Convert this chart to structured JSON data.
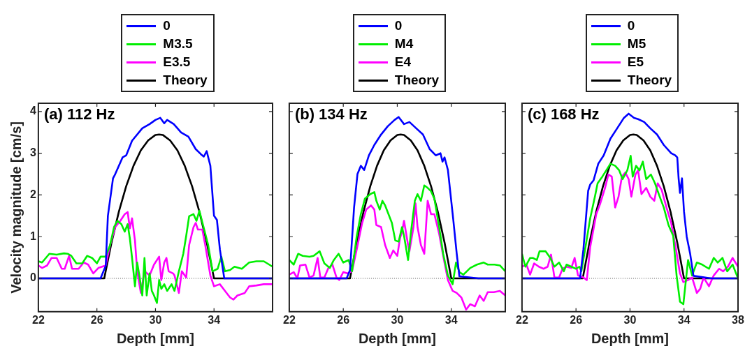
{
  "chart_data": [
    {
      "type": "line",
      "title": "(a) 112 Hz",
      "xlabel": "Depth [mm]",
      "ylabel": "Velocity magnitude [cm/s]",
      "xlim": [
        22,
        38
      ],
      "xticks": [
        22,
        26,
        30,
        34,
        {
          "value": 38,
          "label": null
        }
      ],
      "ylim": [
        -0.8,
        4.2
      ],
      "yticks": [
        0,
        1,
        2,
        3,
        4
      ],
      "grid": false,
      "legend": "top",
      "ref_lines": [
        {
          "axis": "y",
          "value": 0,
          "label": null,
          "color": "#555555",
          "line_style": "dotted"
        }
      ],
      "series": [
        {
          "name": "0",
          "color": "#0000ff",
          "x": [
            22,
            24,
            26.25,
            26.6,
            26.75,
            27.1,
            27.25,
            27.75,
            28,
            28.4,
            29.1,
            29.6,
            30,
            30.33,
            30.6,
            30.8,
            31.25,
            31.75,
            32.25,
            32.75,
            33.1,
            33.3,
            33.5,
            33.75,
            34,
            34.2,
            34.4,
            34.7,
            36,
            38
          ],
          "values": [
            0,
            0,
            0,
            0.3,
            1.5,
            2.4,
            2.5,
            2.9,
            2.95,
            3.3,
            3.6,
            3.7,
            3.8,
            3.85,
            3.72,
            3.8,
            3.7,
            3.5,
            3.4,
            3.1,
            2.98,
            2.92,
            3.05,
            2.7,
            1.5,
            1.4,
            0.7,
            0,
            0,
            0
          ]
        },
        {
          "name": "M3.5",
          "color": "#00ee00",
          "x": [
            22,
            22.25,
            22.75,
            23.25,
            23.75,
            24,
            24.25,
            24.6,
            25,
            25.33,
            25.67,
            26,
            26.25,
            26.6,
            26.9,
            27.17,
            27.4,
            27.67,
            27.9,
            28.1,
            28.25,
            28.4,
            28.6,
            28.75,
            28.9,
            29.1,
            29.25,
            29.4,
            29.6,
            29.75,
            29.9,
            30.1,
            30.25,
            30.4,
            30.6,
            30.8,
            31.1,
            31.3,
            31.6,
            31.9,
            32.1,
            32.3,
            32.6,
            32.8,
            33,
            33.25,
            33.6,
            33.9,
            34.25,
            34.5,
            34.75,
            35.1,
            35.4,
            35.9,
            36.4,
            36.9,
            37.4,
            38
          ],
          "values": [
            0.41,
            0.38,
            0.59,
            0.57,
            0.6,
            0.59,
            0.54,
            0.36,
            0.36,
            0.54,
            0.49,
            0.36,
            0.52,
            0.52,
            0.8,
            1.23,
            1.38,
            1.3,
            1.12,
            1.3,
            0.96,
            0.49,
            -0.19,
            0.38,
            0.07,
            -0.41,
            0.49,
            -0.41,
            0.12,
            -0.3,
            -0.41,
            -0.59,
            -0.04,
            -0.25,
            -0.14,
            -0.3,
            -0.14,
            -0.3,
            0.17,
            0.59,
            1.02,
            1.49,
            1.54,
            1.38,
            1.62,
            1.28,
            0.8,
            0.17,
            0.23,
            0.52,
            0.17,
            0.2,
            0.28,
            0.23,
            0.38,
            0.41,
            0.41,
            0.28
          ]
        },
        {
          "name": "E3.5",
          "color": "#ff00ff",
          "x": [
            22,
            22.25,
            22.6,
            22.9,
            23.25,
            23.6,
            23.8,
            24.1,
            24.3,
            24.75,
            25.1,
            25.4,
            25.75,
            26.1,
            26.6,
            26.9,
            27.25,
            27.6,
            27.9,
            28.1,
            28.25,
            28.4,
            28.6,
            28.75,
            29,
            29.25,
            29.6,
            29.9,
            30.25,
            30.4,
            30.6,
            30.75,
            30.9,
            31.2,
            31.3,
            31.6,
            31.8,
            32.1,
            32.3,
            32.6,
            32.75,
            32.9,
            33.2,
            33.4,
            33.75,
            34,
            34.4,
            34.75,
            35.1,
            35.33,
            35.6,
            36.1,
            36.4,
            36.9,
            37.4,
            38
          ],
          "values": [
            0.31,
            0.25,
            0.31,
            0.49,
            0.49,
            0.23,
            0.23,
            0.54,
            0.23,
            0.23,
            0.38,
            0.33,
            0.12,
            0.25,
            0.31,
            0.8,
            1.23,
            1.38,
            1.54,
            1.59,
            1.2,
            1.44,
            0.91,
            0.17,
            -0.35,
            0.17,
            0.07,
            0.33,
            0.52,
            -0.04,
            0.38,
            0.49,
            0.17,
            0.12,
            0.07,
            -0.35,
            0.17,
            0.02,
            0.8,
            1.23,
            1.33,
            1.17,
            1.17,
            0.8,
            0.07,
            -0.19,
            -0.14,
            -0.3,
            -0.46,
            -0.51,
            -0.41,
            -0.35,
            -0.19,
            -0.17,
            -0.14,
            -0.14
          ]
        },
        {
          "name": "Theory",
          "color": "#000000",
          "x": [
            22,
            26.5,
            27,
            27.5,
            28,
            28.5,
            29,
            29.5,
            30,
            30.25,
            30.5,
            31,
            31.5,
            32,
            32.5,
            33,
            33.5,
            34,
            38
          ],
          "values": [
            0,
            0,
            0.86,
            1.6,
            2.21,
            2.7,
            3.07,
            3.31,
            3.44,
            3.45,
            3.44,
            3.31,
            3.07,
            2.7,
            2.21,
            1.6,
            0.86,
            0,
            0
          ]
        }
      ]
    },
    {
      "type": "line",
      "title": "(b) 134 Hz",
      "xlabel": "Depth [mm]",
      "xlim": [
        22,
        38
      ],
      "xticks": [
        22,
        26,
        30,
        34,
        {
          "value": 38,
          "label": null
        }
      ],
      "ylim": [
        -0.8,
        4.2
      ],
      "yticks": [
        0,
        1,
        2,
        3,
        4
      ],
      "tick_labels": "x",
      "grid": false,
      "legend": "top",
      "ref_lines": [
        {
          "axis": "y",
          "value": 0,
          "label": null,
          "color": "#555555",
          "line_style": "dotted"
        }
      ],
      "series": [
        {
          "name": "0",
          "color": "#0000ff",
          "x": [
            22,
            24,
            26.25,
            26.5,
            26.8,
            27.05,
            27.3,
            27.55,
            27.9,
            28.3,
            28.8,
            29.3,
            29.8,
            30.1,
            30.5,
            30.9,
            31.4,
            31.9,
            32.4,
            32.85,
            33.2,
            33.35,
            33.5,
            33.75,
            34.15,
            34.4,
            34.6,
            36,
            38
          ],
          "values": [
            0,
            0,
            0,
            0.2,
            1.7,
            2.5,
            2.7,
            2.6,
            2.95,
            3.2,
            3.45,
            3.65,
            3.8,
            3.87,
            3.7,
            3.75,
            3.6,
            3.45,
            3.1,
            2.95,
            3.0,
            2.8,
            2.9,
            2.6,
            1.4,
            0.6,
            0.05,
            0,
            0
          ]
        },
        {
          "name": "M4",
          "color": "#00ee00",
          "x": [
            22,
            22.33,
            22.66,
            23,
            23.5,
            23.8,
            24.25,
            24.6,
            25,
            25.3,
            25.65,
            26,
            26.4,
            26.65,
            27,
            27.3,
            27.6,
            28,
            28.3,
            28.45,
            28.7,
            28.9,
            29.1,
            29.35,
            29.6,
            29.85,
            30.1,
            30.35,
            30.5,
            30.8,
            31,
            31.3,
            31.5,
            31.75,
            32,
            32.25,
            32.5,
            32.75,
            33.1,
            33.4,
            33.75,
            34.1,
            34.35,
            34.6,
            34.9,
            35.4,
            35.9,
            36.4,
            36.7,
            37.2,
            37.6,
            38
          ],
          "values": [
            0.44,
            0.33,
            0.59,
            0.54,
            0.52,
            0.54,
            0.65,
            0.36,
            0.25,
            0.44,
            0.59,
            0.38,
            0.44,
            0.17,
            1.02,
            1.54,
            1.91,
            2.02,
            2.07,
            1.86,
            1.65,
            1.86,
            1.75,
            1.54,
            1.33,
            0.91,
            0.88,
            1.23,
            1.02,
            0.44,
            1.07,
            1.86,
            2.02,
            1.86,
            2.23,
            2.17,
            2.09,
            1.91,
            1.23,
            0.59,
            0.07,
            -0.14,
            0.38,
            0.15,
            0.09,
            0.25,
            0.33,
            0.38,
            0.33,
            0.33,
            0.31,
            0.17
          ]
        },
        {
          "name": "E4",
          "color": "#ff00ff",
          "x": [
            22,
            22.33,
            22.6,
            22.8,
            23.2,
            23.5,
            23.8,
            24.1,
            24.3,
            24.6,
            24.9,
            25.2,
            25.5,
            25.7,
            26,
            26.3,
            26.65,
            27,
            27.4,
            27.7,
            28.05,
            28.3,
            28.45,
            28.8,
            29.1,
            29.45,
            29.7,
            30,
            30.2,
            30.35,
            30.5,
            30.8,
            30.9,
            31.2,
            31.35,
            31.5,
            31.75,
            32,
            32.25,
            32.5,
            32.75,
            33.1,
            33.4,
            33.75,
            34.1,
            34.4,
            34.75,
            35.1,
            35.4,
            35.75,
            36.1,
            36.4,
            36.7,
            37.15,
            37.6,
            38
          ],
          "values": [
            0.09,
            0.15,
            0,
            0.31,
            0.33,
            0.02,
            0.07,
            0.49,
            0.02,
            0.02,
            0.25,
            0.33,
            0.02,
            -0.04,
            0.15,
            0.12,
            0.17,
            0.7,
            1.33,
            1.65,
            1.75,
            1.65,
            1.28,
            1.23,
            0.8,
            0.49,
            0.67,
            0.54,
            0.96,
            1.12,
            1.38,
            0.8,
            0.65,
            1.23,
            1.8,
            1.23,
            0.8,
            0.59,
            1.86,
            1.54,
            1.54,
            1.07,
            0.54,
            -0.04,
            -0.3,
            -0.35,
            -0.46,
            -0.75,
            -0.62,
            -0.67,
            -0.41,
            -0.54,
            -0.33,
            -0.33,
            -0.3,
            -0.41
          ]
        },
        {
          "name": "Theory",
          "color": "#000000",
          "x": [
            22,
            26.5,
            27,
            27.5,
            28,
            28.5,
            29,
            29.5,
            30,
            30.25,
            30.5,
            31,
            31.5,
            32,
            32.5,
            33,
            33.5,
            34,
            38
          ],
          "values": [
            0,
            0,
            0.86,
            1.6,
            2.21,
            2.7,
            3.07,
            3.31,
            3.44,
            3.45,
            3.44,
            3.31,
            3.07,
            2.7,
            2.21,
            1.6,
            0.86,
            0,
            0
          ]
        }
      ]
    },
    {
      "type": "line",
      "title": "(c) 168 Hz",
      "xlabel": "Depth [mm]",
      "xlim": [
        22,
        38
      ],
      "xticks": [
        22,
        26,
        30,
        34,
        38
      ],
      "ylim": [
        -0.8,
        4.2
      ],
      "yticks": [
        0,
        1,
        2,
        3,
        4
      ],
      "tick_labels": "x",
      "grid": false,
      "legend": "top",
      "ref_lines": [
        {
          "axis": "y",
          "value": 0,
          "label": null,
          "color": "#555555",
          "line_style": "dotted"
        }
      ],
      "series": [
        {
          "name": "0",
          "color": "#0000ff",
          "x": [
            22,
            24,
            26.3,
            26.55,
            26.9,
            27.05,
            27.3,
            27.65,
            28.05,
            28.55,
            29.05,
            29.55,
            29.9,
            30.3,
            30.6,
            31.05,
            31.5,
            32,
            32.5,
            33.05,
            33.35,
            33.5,
            33.6,
            33.7,
            33.85,
            34,
            34.2,
            34.45,
            34.7,
            36,
            38
          ],
          "values": [
            0,
            0,
            0,
            0.7,
            2.1,
            2.25,
            2.35,
            2.75,
            2.95,
            3.35,
            3.6,
            3.85,
            3.95,
            3.85,
            3.82,
            3.75,
            3.6,
            3.45,
            3.2,
            3.0,
            2.95,
            2.9,
            2.4,
            2.05,
            2.4,
            1.6,
            1.0,
            0.6,
            0.06,
            0,
            0
          ]
        },
        {
          "name": "M5",
          "color": "#00ee00",
          "x": [
            22,
            22.25,
            22.6,
            22.8,
            23.1,
            23.3,
            23.75,
            24.1,
            24.4,
            24.75,
            25.1,
            25.3,
            25.65,
            26,
            26.25,
            26.4,
            26.7,
            27.05,
            27.4,
            27.6,
            27.95,
            28.3,
            28.55,
            28.9,
            29.2,
            29.45,
            29.8,
            30.05,
            30.2,
            30.45,
            30.7,
            30.95,
            31.2,
            31.55,
            31.85,
            32.2,
            32.5,
            32.85,
            33.2,
            33.45,
            33.7,
            33.95,
            34.3,
            34.6,
            34.95,
            35.35,
            35.85,
            36.2,
            36.5,
            36.85,
            37.2,
            37.6,
            38
          ],
          "values": [
            0.59,
            0.28,
            0.49,
            0.49,
            0.44,
            0.65,
            0.65,
            0.49,
            0.28,
            0.38,
            0.17,
            0.33,
            0.28,
            0.23,
            0.28,
            0.17,
            0.75,
            1.44,
            1.96,
            2.28,
            2.44,
            2.62,
            2.75,
            2.7,
            2.59,
            2.38,
            2.59,
            2.94,
            2.44,
            2.7,
            2.59,
            2.8,
            2.38,
            2.49,
            2.28,
            1.96,
            1.7,
            1.28,
            1.02,
            0.07,
            -0.56,
            -0.62,
            0.44,
            0.07,
            0.38,
            0.33,
            0.23,
            0.49,
            0.38,
            0.49,
            0.17,
            0.33,
            0
          ]
        },
        {
          "name": "E5",
          "color": "#ff00ff",
          "x": [
            22,
            22.33,
            22.6,
            22.9,
            23.25,
            23.6,
            23.9,
            24.15,
            24.4,
            24.75,
            25,
            25.3,
            25.65,
            25.9,
            26.15,
            26.55,
            26.8,
            27.05,
            27.5,
            27.8,
            28.15,
            28.4,
            28.65,
            28.9,
            29.15,
            29.4,
            29.65,
            29.9,
            30.1,
            30.4,
            30.6,
            30.85,
            31.2,
            31.5,
            31.8,
            32.05,
            32.35,
            32.7,
            33.05,
            33.35,
            33.7,
            33.95,
            34.3,
            34.6,
            34.95,
            35.2,
            35.45,
            35.85,
            36.2,
            36.6,
            36.9,
            37.25,
            37.6,
            38
          ],
          "values": [
            0.28,
            0.33,
            0.09,
            0.36,
            0.28,
            0.23,
            0.28,
            0.57,
            0.02,
            0.02,
            0.23,
            0.28,
            0.25,
            0.49,
            0.07,
            0.02,
            -0.04,
            0.75,
            1.54,
            1.8,
            2.17,
            2.49,
            2.44,
            1.7,
            1.96,
            2.44,
            2.54,
            2.38,
            1.96,
            2.49,
            2.59,
            2.02,
            2.17,
            1.96,
            1.86,
            2.28,
            2.12,
            1.7,
            1.33,
            0.8,
            0.12,
            -0.09,
            -0.04,
            0.02,
            -0.35,
            -0.25,
            0.02,
            -0.19,
            0.07,
            0.23,
            0.17,
            0.28,
            0.49,
            0.28
          ]
        },
        {
          "name": "Theory",
          "color": "#000000",
          "x": [
            22,
            26.5,
            27,
            27.5,
            28,
            28.5,
            29,
            29.5,
            30,
            30.25,
            30.5,
            31,
            31.5,
            32,
            32.5,
            33,
            33.5,
            34,
            38
          ],
          "values": [
            0,
            0,
            0.86,
            1.6,
            2.21,
            2.7,
            3.07,
            3.31,
            3.44,
            3.45,
            3.44,
            3.31,
            3.07,
            2.7,
            2.21,
            1.6,
            0.86,
            0,
            0
          ]
        }
      ]
    }
  ]
}
